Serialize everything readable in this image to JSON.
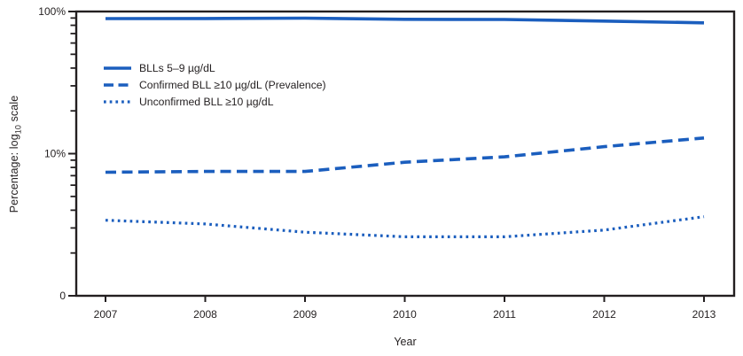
{
  "figure": {
    "background": "#ffffff",
    "text_color": "#231f20"
  },
  "chart_data": {
    "type": "line",
    "title": "",
    "xlabel": "Year",
    "ylabel": "Percentage: log10 scale",
    "ylabel_parts": {
      "prefix": "Percentage: log",
      "sub": "10",
      "suffix": " scale"
    },
    "x": [
      2007,
      2008,
      2009,
      2010,
      2011,
      2012,
      2013
    ],
    "series": [
      {
        "name": "BLLs 5–9 µg/dL",
        "style": "solid",
        "values": [
          89.2,
          89.3,
          89.8,
          88.2,
          87.9,
          85.6,
          83.2
        ]
      },
      {
        "name": "Confirmed BLL ≥10 µg/dL (Prevalence)",
        "style": "dashed",
        "values": [
          7.4,
          7.5,
          7.5,
          8.7,
          9.5,
          11.2,
          12.9
        ]
      },
      {
        "name": "Unconfirmed BLL ≥10 µg/dL",
        "style": "dotted",
        "values": [
          3.4,
          3.2,
          2.8,
          2.6,
          2.6,
          2.9,
          3.6
        ]
      }
    ],
    "y_axis": {
      "scale": "log10",
      "ylim": [
        1,
        100
      ],
      "major_tick_labels": [
        "100%",
        "10%",
        "0"
      ]
    },
    "legend_position": "top-left",
    "grid": false,
    "line_color": "#1b5ebe",
    "frame_color": "#231f20"
  }
}
